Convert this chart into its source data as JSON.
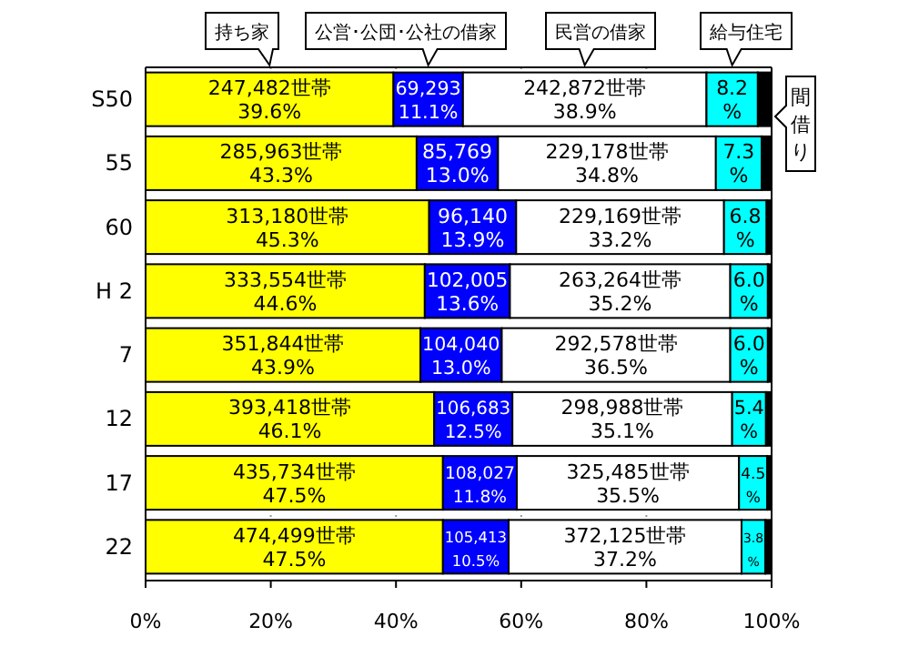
{
  "chart_data": {
    "type": "bar",
    "orientation": "horizontal",
    "stacked": true,
    "categories": [
      "S50",
      "55",
      "60",
      "H 2",
      "7",
      "12",
      "17",
      "22"
    ],
    "series": [
      {
        "name": "持ち家",
        "color": "#ffff00",
        "values": [
          39.6,
          43.3,
          45.3,
          44.6,
          43.9,
          46.1,
          47.5,
          47.5
        ],
        "value_labels": [
          "247,482世帯\n39.6%",
          "285,963世帯\n43.3%",
          "313,180世帯\n45.3%",
          "333,554世帯\n44.6%",
          "351,844世帯\n43.9%",
          "393,418世帯\n46.1%",
          "435,734世帯\n47.5%",
          "474,499世帯\n47.5%"
        ]
      },
      {
        "name": "公営･公団･公社の借家",
        "color": "#0000ff",
        "values": [
          11.1,
          13.0,
          13.9,
          13.6,
          13.0,
          12.5,
          11.8,
          10.5
        ],
        "value_labels": [
          "69,293\n11.1%",
          "85,769\n13.0%",
          "96,140\n13.9%",
          "102,005\n13.6%",
          "104,040\n13.0%",
          "106,683\n12.5%",
          "108,027\n11.8%",
          "105,413\n10.5%"
        ]
      },
      {
        "name": "民営の借家",
        "color": "#ffffff",
        "values": [
          38.9,
          34.8,
          33.2,
          35.2,
          36.5,
          35.1,
          35.5,
          37.2
        ],
        "value_labels": [
          "242,872世帯\n38.9%",
          "229,178世帯\n34.8%",
          "229,169世帯\n33.2%",
          "263,264世帯\n35.2%",
          "292,578世帯\n36.5%",
          "298,988世帯\n35.1%",
          "325,485世帯\n35.5%",
          "372,125世帯\n37.2%"
        ]
      },
      {
        "name": "給与住宅",
        "color": "#00ffff",
        "values": [
          8.2,
          7.3,
          6.8,
          6.0,
          6.0,
          5.4,
          4.5,
          3.8
        ],
        "value_labels": [
          "8.2\n%",
          "7.3\n%",
          "6.8\n%",
          "6.0\n%",
          "6.0\n%",
          "5.4\n%",
          "4.5\n%",
          "3.8\n%"
        ]
      },
      {
        "name": "間借り",
        "color": "#000000",
        "values": [
          2.2,
          1.6,
          0.8,
          0.6,
          0.6,
          0.9,
          0.7,
          1.0
        ]
      }
    ],
    "xlim": [
      0,
      100
    ],
    "xticks": [
      {
        "value": 0,
        "label": "0%"
      },
      {
        "value": 20,
        "label": "20%"
      },
      {
        "value": 40,
        "label": "40%"
      },
      {
        "value": 60,
        "label": "60%"
      },
      {
        "value": 80,
        "label": "80%"
      },
      {
        "value": 100,
        "label": "100%"
      }
    ],
    "grid": "x"
  }
}
